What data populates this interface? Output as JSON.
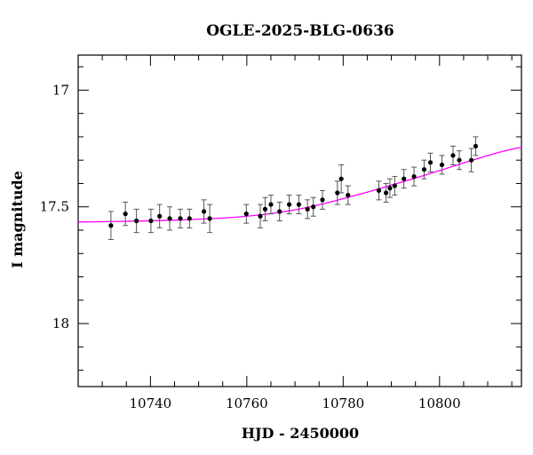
{
  "chart_data": {
    "type": "scatter",
    "title": "OGLE-2025-BLG-0636",
    "xlabel": "HJD - 2450000",
    "ylabel": "I magnitude",
    "xlim": [
      10725,
      10817
    ],
    "ylim": [
      18.27,
      16.85
    ],
    "y_inverted": true,
    "x_ticks": [
      10740,
      10760,
      10780,
      10800
    ],
    "y_ticks": [
      17,
      17.5,
      18
    ],
    "y_tick_labels": [
      "17",
      "17.5",
      "18"
    ],
    "grid": false,
    "colors": {
      "points": "#000000",
      "errorbars": "#555555",
      "model": "#ff00ff",
      "frame": "#000000"
    },
    "series": [
      {
        "type": "points_with_errors",
        "x": [
          10731.8,
          10734.8,
          10737.1,
          10740.1,
          10741.9,
          10744.0,
          10746.2,
          10748.1,
          10751.1,
          10752.3,
          10759.9,
          10762.8,
          10763.8,
          10765.0,
          10766.8,
          10768.8,
          10770.8,
          10772.6,
          10773.8,
          10775.7,
          10778.8,
          10779.6,
          10781.0,
          10787.4,
          10788.9,
          10789.7,
          10790.7,
          10792.6,
          10794.7,
          10796.8,
          10798.1,
          10800.5,
          10802.8,
          10804.1,
          10806.6,
          10807.5
        ],
        "y": [
          17.58,
          17.53,
          17.56,
          17.56,
          17.54,
          17.55,
          17.55,
          17.55,
          17.52,
          17.55,
          17.53,
          17.54,
          17.51,
          17.49,
          17.52,
          17.49,
          17.49,
          17.51,
          17.5,
          17.47,
          17.44,
          17.38,
          17.45,
          17.43,
          17.44,
          17.42,
          17.41,
          17.38,
          17.37,
          17.34,
          17.31,
          17.32,
          17.28,
          17.3,
          17.3,
          17.24
        ],
        "err": [
          0.06,
          0.05,
          0.05,
          0.05,
          0.05,
          0.05,
          0.04,
          0.04,
          0.05,
          0.06,
          0.04,
          0.05,
          0.05,
          0.04,
          0.04,
          0.04,
          0.04,
          0.04,
          0.04,
          0.04,
          0.05,
          0.06,
          0.04,
          0.04,
          0.04,
          0.04,
          0.04,
          0.04,
          0.04,
          0.04,
          0.04,
          0.04,
          0.04,
          0.04,
          0.05,
          0.04
        ]
      },
      {
        "type": "model_curve",
        "x": [
          10725,
          10735,
          10745,
          10755,
          10760,
          10765,
          10770,
          10775,
          10780,
          10785,
          10790,
          10795,
          10800,
          10805,
          10810,
          10814,
          10817
        ],
        "y": [
          17.565,
          17.562,
          17.557,
          17.548,
          17.54,
          17.529,
          17.513,
          17.491,
          17.465,
          17.437,
          17.407,
          17.377,
          17.345,
          17.312,
          17.28,
          17.258,
          17.245
        ]
      }
    ]
  }
}
